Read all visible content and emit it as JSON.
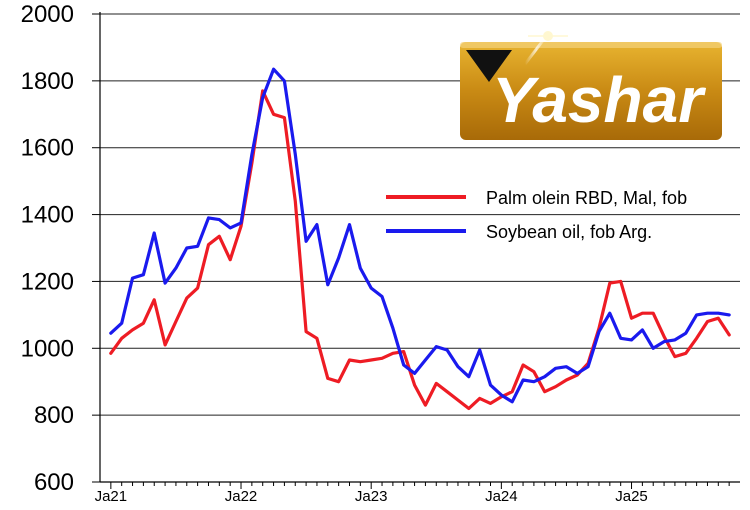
{
  "chart_data": {
    "type": "line",
    "y_ticks": [
      "600",
      "800",
      "1000",
      "1200",
      "1400",
      "1600",
      "1800",
      "2000"
    ],
    "ylim": [
      600,
      2000
    ],
    "x_ticks": [
      {
        "label": "Ja21",
        "x": 0
      },
      {
        "label": "Ja22",
        "x": 12
      },
      {
        "label": "Ja23",
        "x": 24
      },
      {
        "label": "Ja24",
        "x": 36
      },
      {
        "label": "Ja25",
        "x": 48
      }
    ],
    "xlim": [
      -1,
      58
    ],
    "grid": true,
    "legend_position": "right",
    "series": [
      {
        "name": "Palm olein RBD, Mal, fob",
        "color": "#ee1c24",
        "x": [
          0,
          1,
          2,
          3,
          4,
          5,
          6,
          7,
          8,
          9,
          10,
          11,
          12,
          13,
          14,
          15,
          16,
          17,
          18,
          19,
          20,
          21,
          22,
          23,
          24,
          25,
          26,
          27,
          28,
          29,
          30,
          31,
          32,
          33,
          34,
          35,
          36,
          37,
          38,
          39,
          40,
          41,
          42,
          43,
          44,
          45,
          46,
          47,
          48,
          49,
          50,
          51,
          52,
          53,
          54,
          55,
          56,
          57
        ],
        "values": [
          985,
          1030,
          1055,
          1075,
          1145,
          1010,
          1080,
          1150,
          1180,
          1310,
          1335,
          1265,
          1365,
          1555,
          1770,
          1700,
          1690,
          1440,
          1050,
          1030,
          910,
          900,
          965,
          960,
          965,
          970,
          985,
          990,
          890,
          830,
          895,
          870,
          845,
          820,
          850,
          835,
          855,
          870,
          950,
          930,
          870,
          885,
          905,
          920,
          955,
          1060,
          1195,
          1200,
          1090,
          1105,
          1105,
          1035,
          975,
          985,
          1030,
          1080,
          1090,
          1040
        ]
      },
      {
        "name": "Soybean oil, fob Arg.",
        "color": "#1a1aee",
        "x": [
          0,
          1,
          2,
          3,
          4,
          5,
          6,
          7,
          8,
          9,
          10,
          11,
          12,
          13,
          14,
          15,
          16,
          17,
          18,
          19,
          20,
          21,
          22,
          23,
          24,
          25,
          26,
          27,
          28,
          29,
          30,
          31,
          32,
          33,
          34,
          35,
          36,
          37,
          38,
          39,
          40,
          41,
          42,
          43,
          44,
          45,
          46,
          47,
          48,
          49,
          50,
          51,
          52,
          53,
          54,
          55,
          56,
          57
        ],
        "values": [
          1045,
          1075,
          1210,
          1220,
          1345,
          1195,
          1240,
          1300,
          1305,
          1390,
          1385,
          1360,
          1375,
          1580,
          1750,
          1835,
          1800,
          1580,
          1320,
          1370,
          1190,
          1270,
          1370,
          1240,
          1180,
          1155,
          1060,
          950,
          925,
          965,
          1005,
          995,
          945,
          915,
          995,
          890,
          860,
          840,
          905,
          900,
          915,
          940,
          945,
          925,
          945,
          1050,
          1105,
          1030,
          1025,
          1055,
          1000,
          1020,
          1025,
          1045,
          1100,
          1105,
          1105,
          1100
        ]
      }
    ]
  },
  "logo": {
    "text": "Yashar"
  }
}
